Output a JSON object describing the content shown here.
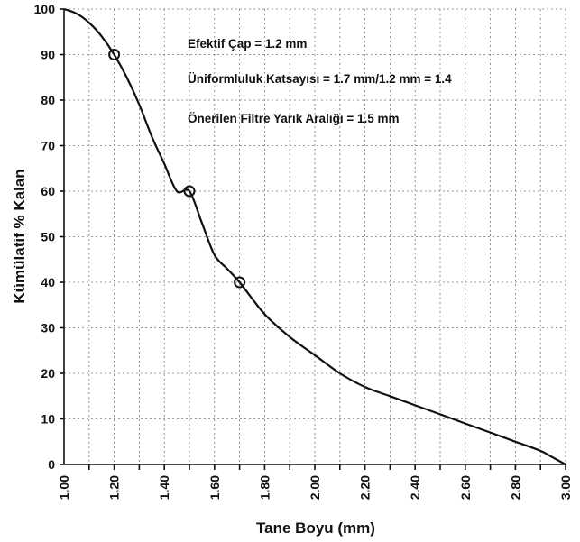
{
  "chart_data": {
    "type": "line",
    "xlabel": "Tane Boyu (mm)",
    "ylabel": "Kümülatif % Kalan",
    "xlim": [
      1.0,
      3.0
    ],
    "ylim": [
      0,
      100
    ],
    "x_tick_labels": [
      "1.00",
      "1.20",
      "1.40",
      "1.60",
      "1.80",
      "2.00",
      "2.20",
      "2.40",
      "2.60",
      "2.80",
      "3.00"
    ],
    "y_tick_labels": [
      "0",
      "10",
      "20",
      "30",
      "40",
      "50",
      "60",
      "70",
      "80",
      "90",
      "100"
    ],
    "x_minor_step": 0.1,
    "grid": true,
    "series": [
      {
        "x": [
          1.0,
          1.05,
          1.1,
          1.15,
          1.2,
          1.25,
          1.3,
          1.35,
          1.4,
          1.45,
          1.5,
          1.55,
          1.6,
          1.65,
          1.7,
          1.8,
          1.9,
          2.0,
          2.1,
          2.2,
          2.3,
          2.4,
          2.5,
          2.6,
          2.7,
          2.8,
          2.9,
          2.95,
          3.0
        ],
        "y": [
          100,
          99,
          97,
          94,
          90,
          85,
          79,
          72,
          66,
          60,
          60,
          53,
          46,
          43,
          40,
          33,
          28,
          24,
          20,
          17,
          15,
          13,
          11,
          9,
          7,
          5,
          3,
          1.5,
          0
        ]
      }
    ],
    "markers": [
      {
        "x": 1.2,
        "y": 90
      },
      {
        "x": 1.5,
        "y": 60
      },
      {
        "x": 1.7,
        "y": 40
      }
    ],
    "annotations": [
      "Efektif Çap = 1.2 mm",
      "Üniformluluk Katsayısı = 1.7 mm/1.2 mm = 1.4",
      "Önerilen Filtre Yarık Aralığı = 1.5 mm"
    ]
  }
}
